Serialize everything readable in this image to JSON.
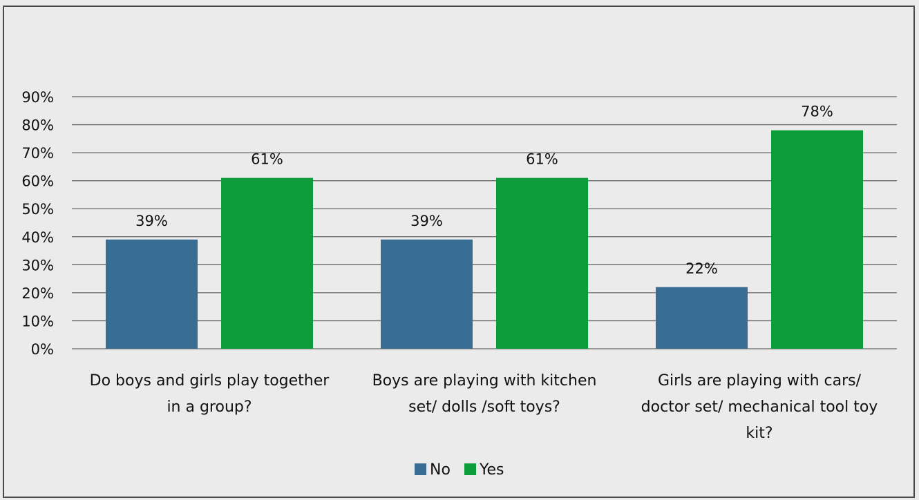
{
  "chart_data": {
    "type": "bar",
    "title": "",
    "xlabel": "",
    "ylabel": "",
    "ylim": [
      0,
      90
    ],
    "y_tick_step": 10,
    "y_tick_format": "percent",
    "grid": true,
    "legend_position": "bottom",
    "categories": [
      [
        "Do boys and girls play together",
        "in a group?"
      ],
      [
        "Boys are playing with kitchen",
        "set/ dolls /soft toys?"
      ],
      [
        "Girls are playing with cars/",
        "doctor set/ mechanical tool toy",
        "kit?"
      ]
    ],
    "series": [
      {
        "name": "No",
        "color": "#386d94",
        "values": [
          39,
          39,
          22
        ],
        "labels": [
          "39%",
          "39%",
          "22%"
        ]
      },
      {
        "name": "Yes",
        "color": "#0c9c3a",
        "values": [
          61,
          61,
          78
        ],
        "labels": [
          "61%",
          "61%",
          "78%"
        ]
      }
    ]
  }
}
